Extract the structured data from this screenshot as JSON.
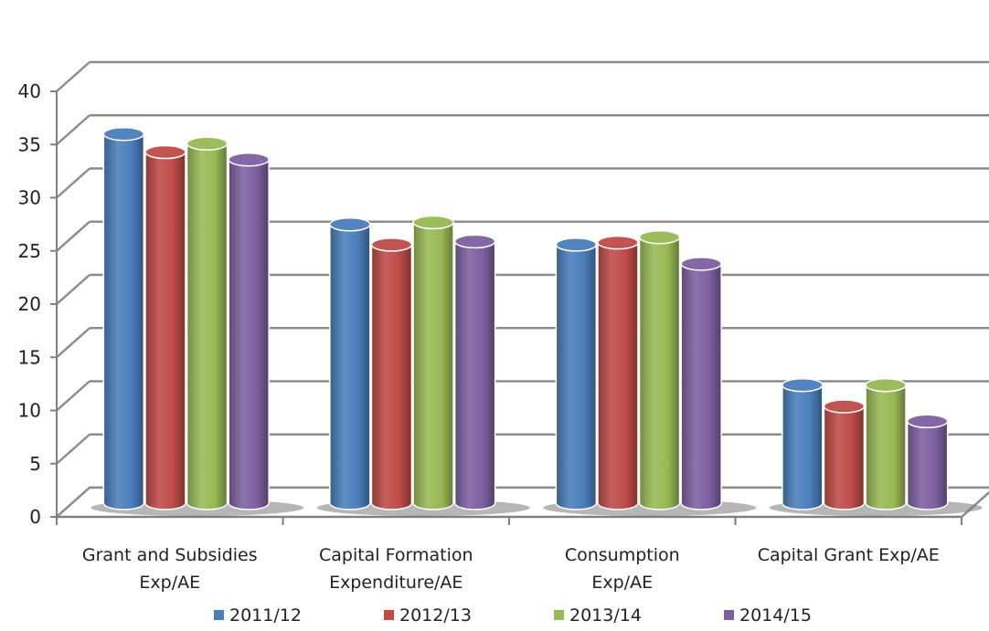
{
  "chart_data": {
    "type": "bar",
    "title": "",
    "xlabel": "",
    "ylabel": "",
    "ylim": [
      0,
      40
    ],
    "yticks": [
      0,
      5,
      10,
      15,
      20,
      25,
      30,
      35,
      40
    ],
    "grid": true,
    "legend_position": "bottom",
    "categories": [
      [
        "Grant and Subsidies",
        "Exp/AE"
      ],
      [
        "Capital Formation",
        "Expenditure/AE"
      ],
      [
        "Consumption",
        "Exp/AE"
      ],
      [
        "Capital Grant Exp/AE"
      ]
    ],
    "series": [
      {
        "name": "2011/12",
        "color": "#4a7ebb",
        "values": [
          35.3,
          26.8,
          24.9,
          11.7
        ]
      },
      {
        "name": "2012/13",
        "color": "#be4b48",
        "values": [
          33.6,
          24.9,
          25.1,
          9.7
        ]
      },
      {
        "name": "2013/14",
        "color": "#98b954",
        "values": [
          34.4,
          27.0,
          25.6,
          11.7
        ]
      },
      {
        "name": "2014/15",
        "color": "#7d60a0",
        "values": [
          32.9,
          25.2,
          23.1,
          8.3
        ]
      }
    ]
  }
}
